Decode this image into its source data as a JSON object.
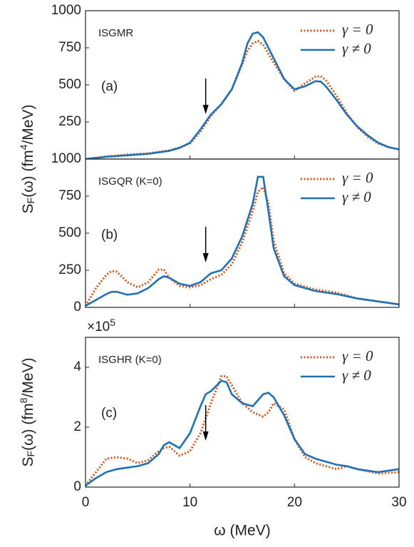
{
  "chart_data": [
    {
      "type": "line",
      "annotation": "ISGMR",
      "panel_label": "(a)",
      "arrow_x": 11.5,
      "ylabel_parts": [
        "S",
        "F",
        "(ω) (fm",
        "4",
        "/MeV)"
      ],
      "xlim": [
        0,
        30
      ],
      "xticks": [
        0,
        10,
        20,
        30
      ],
      "ylim": [
        0,
        1000
      ],
      "yticks": [
        250,
        500,
        750,
        1000
      ],
      "legend": "upper right",
      "x": [
        0,
        2,
        4,
        6,
        8,
        9,
        10,
        11,
        12,
        13,
        14,
        15,
        15.5,
        16,
        16.5,
        17,
        18,
        19,
        20,
        21,
        22,
        22.5,
        23,
        24,
        25,
        26,
        27,
        28,
        29,
        30
      ],
      "series": [
        {
          "name": "γ = 0",
          "color": "#d95319",
          "dash": true,
          "values": [
            0,
            18,
            30,
            38,
            58,
            78,
            105,
            185,
            290,
            370,
            470,
            640,
            730,
            780,
            795,
            770,
            650,
            540,
            460,
            510,
            555,
            560,
            530,
            430,
            310,
            215,
            150,
            105,
            80,
            65
          ]
        },
        {
          "name": "γ ≠ 0",
          "color": "#1f70b4",
          "dash": false,
          "values": [
            0,
            15,
            25,
            35,
            55,
            75,
            110,
            200,
            300,
            370,
            470,
            650,
            780,
            845,
            855,
            820,
            680,
            540,
            470,
            490,
            525,
            522,
            490,
            400,
            300,
            220,
            160,
            110,
            80,
            65
          ]
        }
      ]
    },
    {
      "type": "line",
      "annotation": "ISGQR (K=0)",
      "panel_label": "(b)",
      "arrow_x": 11.5,
      "xlim": [
        0,
        30
      ],
      "xticks": [
        0,
        10,
        20,
        30
      ],
      "ylim": [
        0,
        1000
      ],
      "yticks": [
        0,
        250,
        500,
        750,
        1000
      ],
      "legend": "upper right",
      "x": [
        0,
        1,
        2,
        2.5,
        3,
        4,
        5,
        6,
        7,
        7.5,
        8,
        9,
        10,
        11,
        12,
        13,
        14,
        15,
        16,
        16.5,
        17,
        17.5,
        18,
        19,
        20,
        22,
        24,
        26,
        28,
        30
      ],
      "series": [
        {
          "name": "γ = 0",
          "color": "#d95319",
          "dash": true,
          "values": [
            10,
            130,
            220,
            245,
            240,
            170,
            135,
            170,
            255,
            255,
            200,
            145,
            135,
            150,
            190,
            220,
            290,
            440,
            650,
            780,
            810,
            700,
            450,
            230,
            160,
            120,
            100,
            60,
            40,
            20
          ]
        },
        {
          "name": "γ ≠ 0",
          "color": "#1f70b4",
          "dash": false,
          "values": [
            10,
            50,
            90,
            105,
            105,
            85,
            95,
            130,
            190,
            210,
            200,
            160,
            145,
            170,
            230,
            250,
            330,
            480,
            700,
            880,
            880,
            650,
            400,
            210,
            150,
            110,
            90,
            60,
            40,
            20
          ]
        }
      ]
    },
    {
      "type": "line",
      "annotation": "ISGHR (K=0)",
      "panel_label": "(c)",
      "arrow_x": 11.5,
      "ylabel_parts": [
        "S",
        "F",
        "(ω) (fm",
        "8",
        "/MeV)"
      ],
      "ylabel_multiplier": [
        "×10",
        "5"
      ],
      "xlabel": "ω (MeV)",
      "xlim": [
        0,
        30
      ],
      "xticks": [
        0,
        10,
        20,
        30
      ],
      "ylim": [
        0,
        5
      ],
      "yticks": [
        0,
        2,
        4
      ],
      "legend": "upper right",
      "x": [
        0,
        1,
        2,
        3,
        4,
        5,
        6,
        7,
        7.5,
        8,
        9,
        10,
        11,
        11.5,
        12,
        13,
        13.5,
        14,
        15,
        16,
        17,
        17.5,
        18,
        19,
        20,
        21,
        22,
        24,
        25,
        26,
        28,
        30
      ],
      "series": [
        {
          "name": "γ = 0",
          "color": "#d95319",
          "dash": true,
          "values": [
            0.05,
            0.5,
            0.95,
            1.0,
            0.95,
            0.8,
            0.9,
            1.2,
            1.3,
            1.35,
            1.05,
            1.2,
            1.8,
            2.3,
            2.8,
            3.7,
            3.7,
            3.4,
            2.8,
            2.5,
            2.35,
            2.5,
            2.8,
            2.6,
            1.6,
            1.0,
            0.8,
            0.6,
            0.7,
            0.6,
            0.45,
            0.5
          ]
        },
        {
          "name": "γ ≠ 0",
          "color": "#1f70b4",
          "dash": false,
          "values": [
            0.05,
            0.3,
            0.5,
            0.6,
            0.65,
            0.7,
            0.8,
            1.1,
            1.4,
            1.5,
            1.3,
            1.8,
            2.7,
            3.1,
            3.2,
            3.55,
            3.5,
            3.1,
            2.8,
            2.7,
            3.1,
            3.15,
            3.0,
            2.4,
            1.6,
            1.1,
            0.95,
            0.75,
            0.7,
            0.6,
            0.5,
            0.6
          ]
        }
      ]
    }
  ]
}
